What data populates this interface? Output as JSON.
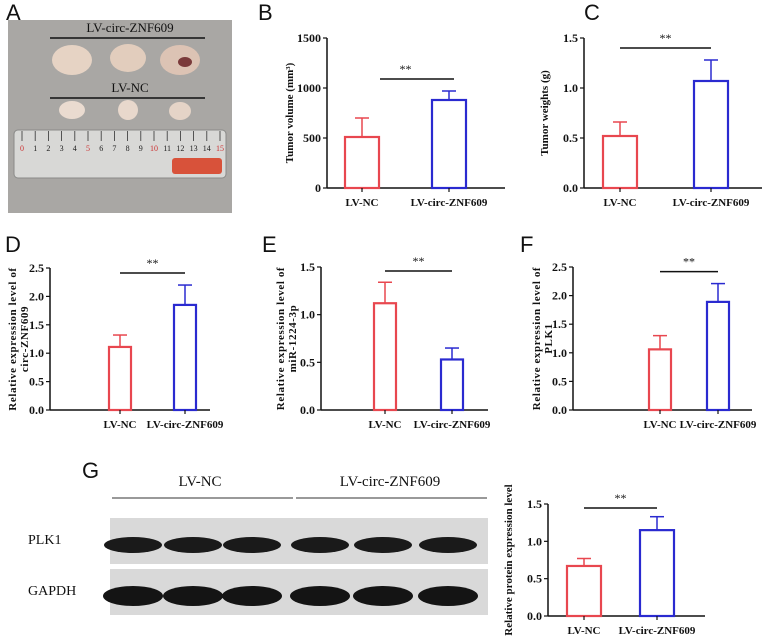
{
  "panel_labels": [
    "A",
    "B",
    "C",
    "D",
    "E",
    "F",
    "G"
  ],
  "photo": {
    "top_group": "LV-circ-ZNF609",
    "bottom_group": "LV-NC",
    "ruler_numbers": [
      "0",
      "1",
      "2",
      "3",
      "4",
      "5",
      "6",
      "7",
      "8",
      "9",
      "10",
      "11",
      "12",
      "13",
      "14",
      "15"
    ]
  },
  "blot": {
    "group_1": "LV-NC",
    "group_2": "LV-circ-ZNF609",
    "row_1": "PLK1",
    "row_2": "GAPDH"
  },
  "colors": {
    "control": "#e8474f",
    "treatment": "#2a2ad0",
    "axis": "#111111"
  },
  "chart_data": [
    {
      "panel": "B",
      "type": "bar",
      "categories": [
        "LV-NC",
        "LV-circ-ZNF609"
      ],
      "values": [
        510,
        880
      ],
      "error_upper": [
        700,
        970
      ],
      "ylabel_lines": [
        "Tumor volume (mm³)"
      ],
      "ylim": [
        0,
        1500
      ],
      "yticks": [
        "0",
        "500",
        "1000",
        "1500"
      ],
      "significance": "**",
      "grid": false
    },
    {
      "panel": "C",
      "type": "bar",
      "categories": [
        "LV-NC",
        "LV-circ-ZNF609"
      ],
      "values": [
        0.52,
        1.07
      ],
      "error_upper": [
        0.66,
        1.28
      ],
      "ylabel_lines": [
        "Tumor weights (g)"
      ],
      "ylim": [
        0,
        1.5
      ],
      "yticks": [
        "0.0",
        "0.5",
        "1.0",
        "1.5"
      ],
      "significance": "**",
      "grid": false
    },
    {
      "panel": "D",
      "type": "bar",
      "categories": [
        "LV-NC",
        "LV-circ-ZNF609"
      ],
      "values": [
        1.11,
        1.85
      ],
      "error_upper": [
        1.32,
        2.2
      ],
      "ylabel_lines": [
        "Relative expression level of",
        "circ-ZNF609"
      ],
      "ylim": [
        0,
        2.5
      ],
      "yticks": [
        "0.0",
        "0.5",
        "1.0",
        "1.5",
        "2.0",
        "2.5"
      ],
      "significance": "**",
      "grid": false
    },
    {
      "panel": "E",
      "type": "bar",
      "categories": [
        "LV-NC",
        "LV-circ-ZNF609"
      ],
      "values": [
        1.12,
        0.53
      ],
      "error_upper": [
        1.34,
        0.65
      ],
      "ylabel_lines": [
        "Relative expression level of",
        "miR-1224-3p"
      ],
      "ylim": [
        0,
        1.5
      ],
      "yticks": [
        "0.0",
        "0.5",
        "1.0",
        "1.5"
      ],
      "significance": "**",
      "grid": false
    },
    {
      "panel": "F",
      "type": "bar",
      "categories": [
        "LV-NC",
        "LV-circ-ZNF609"
      ],
      "values": [
        1.06,
        1.89
      ],
      "error_upper": [
        1.3,
        2.21
      ],
      "ylabel_lines": [
        "Relative expression level of",
        "PLK1"
      ],
      "ylim": [
        0,
        2.5
      ],
      "yticks": [
        "0.0",
        "0.5",
        "1.0",
        "1.5",
        "2.0",
        "2.5"
      ],
      "significance": "**",
      "grid": false
    },
    {
      "panel": "G",
      "type": "bar",
      "categories": [
        "LV-NC",
        "LV-circ-ZNF609"
      ],
      "values": [
        0.67,
        1.15
      ],
      "error_upper": [
        0.77,
        1.33
      ],
      "ylabel_lines": [
        "Relative protein expression level"
      ],
      "ylim": [
        0,
        1.5
      ],
      "yticks": [
        "0.0",
        "0.5",
        "1.0",
        "1.5"
      ],
      "significance": "**",
      "grid": false
    }
  ]
}
